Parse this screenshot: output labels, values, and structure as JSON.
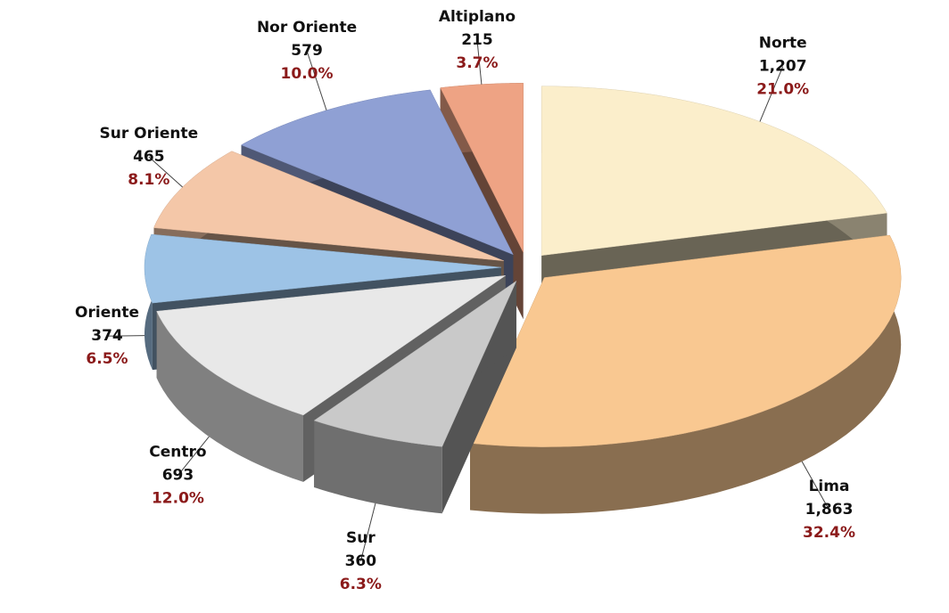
{
  "chart_data": {
    "type": "pie",
    "categories": [
      "Norte",
      "Lima",
      "Sur",
      "Centro",
      "Oriente",
      "Sur Oriente",
      "Nor Oriente",
      "Altiplano"
    ],
    "values": [
      1207,
      1863,
      360,
      693,
      374,
      465,
      579,
      215
    ],
    "value_labels": [
      "1,207",
      "1,863",
      "360",
      "693",
      "374",
      "465",
      "579",
      "215"
    ],
    "percentages": [
      21.0,
      32.4,
      6.3,
      12.0,
      6.5,
      8.1,
      10.0,
      3.7
    ],
    "percentage_labels": [
      "21.0%",
      "32.4%",
      "6.3%",
      "12.0%",
      "6.5%",
      "8.1%",
      "10.0%",
      "3.7%"
    ],
    "colors": [
      "#fbeecb",
      "#f9c891",
      "#c9c9c9",
      "#e8e8e8",
      "#9dc3e6",
      "#f4c7a8",
      "#8fa0d4",
      "#eea384"
    ]
  }
}
